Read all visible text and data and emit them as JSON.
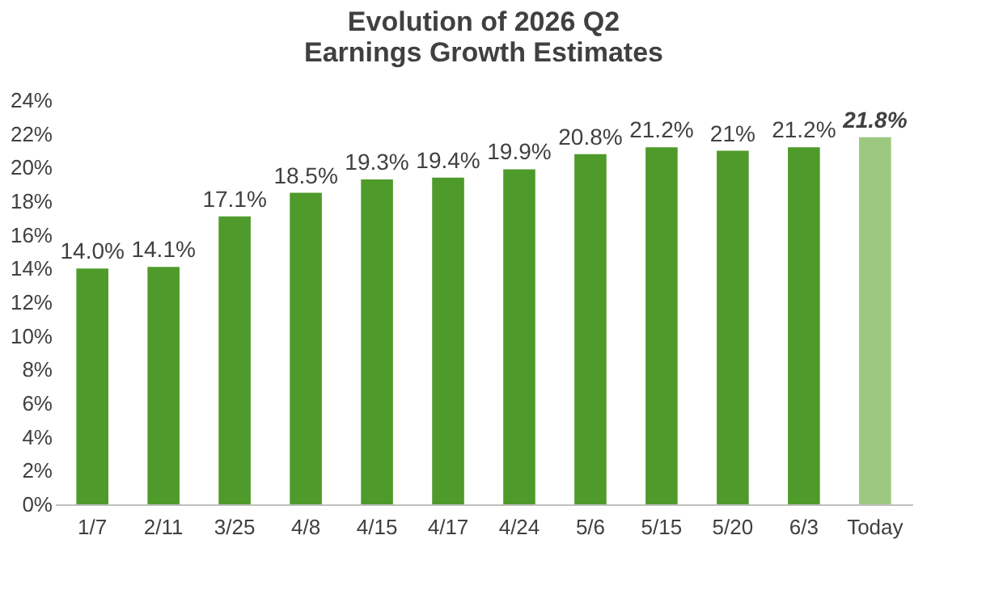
{
  "chart_data": {
    "type": "bar",
    "title": "Evolution of 2026 Q2\nEarnings Growth Estimates",
    "categories": [
      "1/7",
      "2/11",
      "3/25",
      "4/8",
      "4/15",
      "4/17",
      "4/24",
      "5/6",
      "5/15",
      "5/20",
      "6/3",
      "Today"
    ],
    "values": [
      14.0,
      14.1,
      17.1,
      18.5,
      19.3,
      19.4,
      19.9,
      20.8,
      21.2,
      21.0,
      21.2,
      21.8
    ],
    "value_labels": [
      "14.0%",
      "14.1%",
      "17.1%",
      "18.5%",
      "19.3%",
      "19.4%",
      "19.9%",
      "20.8%",
      "21.2%",
      "21%",
      "21.2%",
      "21.8%"
    ],
    "colors": [
      "#4e9a2a",
      "#4e9a2a",
      "#4e9a2a",
      "#4e9a2a",
      "#4e9a2a",
      "#4e9a2a",
      "#4e9a2a",
      "#4e9a2a",
      "#4e9a2a",
      "#4e9a2a",
      "#4e9a2a",
      "#9cc97f"
    ],
    "ylim": [
      0,
      24
    ],
    "yticks": [
      {
        "value": 0,
        "label": "0%"
      },
      {
        "value": 2,
        "label": "2%"
      },
      {
        "value": 4,
        "label": "4%"
      },
      {
        "value": 6,
        "label": "6%"
      },
      {
        "value": 8,
        "label": "8%"
      },
      {
        "value": 10,
        "label": "10%"
      },
      {
        "value": 12,
        "label": "12%"
      },
      {
        "value": 14,
        "label": "14%"
      },
      {
        "value": 16,
        "label": "16%"
      },
      {
        "value": 18,
        "label": "18%"
      },
      {
        "value": 20,
        "label": "20%"
      },
      {
        "value": 22,
        "label": "22%"
      },
      {
        "value": 24,
        "label": "24%"
      }
    ],
    "grid": false
  }
}
